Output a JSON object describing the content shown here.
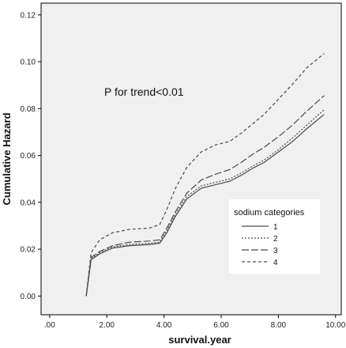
{
  "chart_data": {
    "type": "line",
    "title": "",
    "xlabel": "survival.year",
    "ylabel": "Cumulative Hazard",
    "xlim": [
      -0.3,
      10.2
    ],
    "ylim": [
      -0.008,
      0.125
    ],
    "x_ticks": [
      ".00",
      "2.00",
      "4.00",
      "6.00",
      "8.00",
      "10.00"
    ],
    "x_tick_values": [
      0,
      2,
      4,
      6,
      8,
      10
    ],
    "y_ticks": [
      "0.00",
      "0.02",
      "0.04",
      "0.06",
      "0.08",
      "0.10",
      "0.12"
    ],
    "y_tick_values": [
      0,
      0.02,
      0.04,
      0.06,
      0.08,
      0.1,
      0.12
    ],
    "grid": false,
    "plot_background": "#f0f0f0",
    "line_color": "#4a4a4a",
    "annotation": "P for trend<0.01",
    "legend": {
      "title": "sodium categories",
      "placement": "lower-right",
      "entries": [
        "1",
        "2",
        "3",
        "4"
      ]
    },
    "series": [
      {
        "name": "1",
        "dash": "solid",
        "x": [
          1.28,
          1.45,
          1.75,
          2.2,
          2.8,
          3.5,
          3.85,
          4.1,
          4.4,
          4.8,
          5.3,
          5.8,
          6.3,
          6.7,
          7.1,
          7.5,
          8.0,
          8.5,
          9.0,
          9.6
        ],
        "y": [
          0.0,
          0.0155,
          0.018,
          0.0205,
          0.0215,
          0.022,
          0.0225,
          0.027,
          0.034,
          0.0415,
          0.046,
          0.0475,
          0.049,
          0.0515,
          0.0545,
          0.057,
          0.0615,
          0.066,
          0.0715,
          0.0775
        ]
      },
      {
        "name": "2",
        "dash": "dotted",
        "x": [
          1.28,
          1.45,
          1.75,
          2.2,
          2.8,
          3.5,
          3.85,
          4.1,
          4.4,
          4.8,
          5.3,
          5.8,
          6.3,
          6.7,
          7.1,
          7.5,
          8.0,
          8.5,
          9.0,
          9.6
        ],
        "y": [
          0.0,
          0.016,
          0.0185,
          0.021,
          0.022,
          0.0225,
          0.023,
          0.028,
          0.035,
          0.0425,
          0.047,
          0.0485,
          0.05,
          0.0525,
          0.0555,
          0.058,
          0.0625,
          0.0675,
          0.073,
          0.0795
        ]
      },
      {
        "name": "3",
        "dash": "longdash",
        "x": [
          1.28,
          1.45,
          1.75,
          2.2,
          2.8,
          3.5,
          3.85,
          4.1,
          4.4,
          4.8,
          5.3,
          5.8,
          6.3,
          6.7,
          7.1,
          7.5,
          8.0,
          8.5,
          9.0,
          9.6
        ],
        "y": [
          0.0,
          0.0165,
          0.019,
          0.0215,
          0.023,
          0.0235,
          0.024,
          0.029,
          0.036,
          0.044,
          0.0495,
          0.052,
          0.054,
          0.057,
          0.0605,
          0.0635,
          0.068,
          0.073,
          0.079,
          0.0855
        ]
      },
      {
        "name": "4",
        "dash": "shortdash",
        "x": [
          1.28,
          1.45,
          1.75,
          2.2,
          2.8,
          3.5,
          3.85,
          4.1,
          4.4,
          4.8,
          5.3,
          5.8,
          6.3,
          6.7,
          7.1,
          7.5,
          8.0,
          8.5,
          9.0,
          9.6
        ],
        "y": [
          0.0,
          0.0185,
          0.024,
          0.027,
          0.0285,
          0.029,
          0.0305,
          0.037,
          0.046,
          0.055,
          0.0615,
          0.0645,
          0.066,
          0.0695,
          0.0735,
          0.0775,
          0.084,
          0.0905,
          0.0975,
          0.1035
        ]
      }
    ]
  }
}
